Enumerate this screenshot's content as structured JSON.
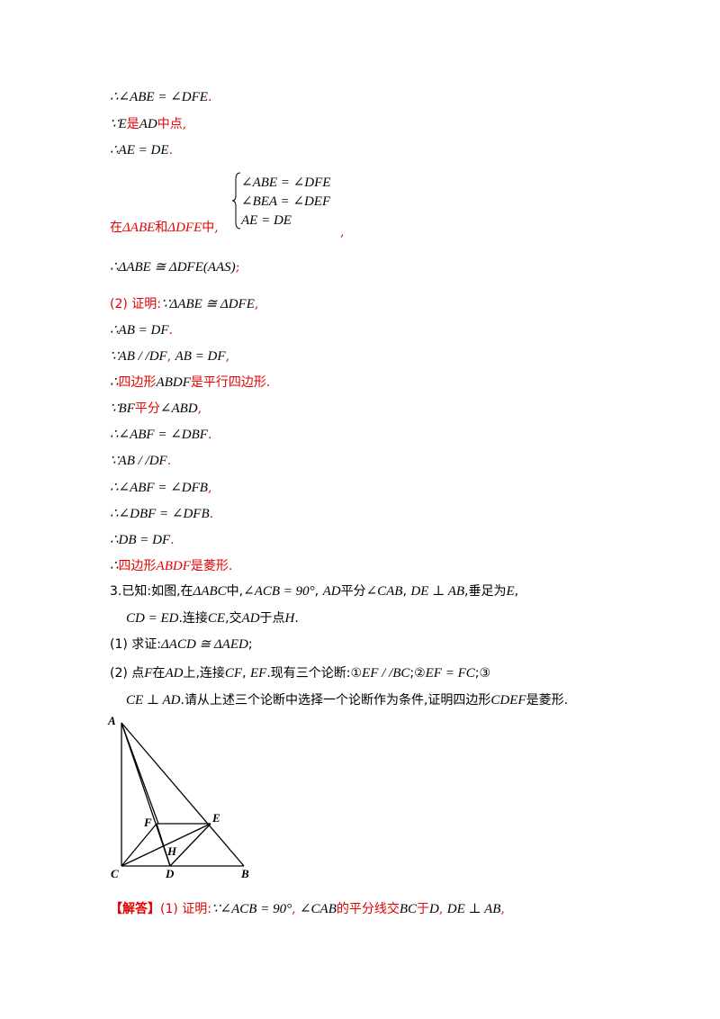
{
  "lines": [
    {
      "text": "∴∠ABE = ∠DFE",
      "tail": "."
    },
    {
      "text": "∵E",
      "red": "是",
      "mid": "AD",
      "red2": "中点",
      "tail": ","
    },
    {
      "text": "∴AE = DE",
      "tail": "."
    },
    {
      "brace": [
        "∠ABE = ∠DFE",
        "∠BEA = ∠DEF",
        "AE = DE"
      ]
    },
    {
      "red": "在",
      "m1": "ΔABE",
      "red2": "和",
      "m2": "ΔDFE",
      "red3": "中",
      "tail": ","
    },
    {
      "tail2": ","
    },
    {
      "text": "∴ΔABE ≅ ΔDFE(AAS)",
      "tail": ";"
    },
    {
      "red": "(2) 证明:",
      "text": "∵ΔABE ≅ ΔDFE",
      "tail": ","
    },
    {
      "text": "∴AB = DF",
      "tail": "."
    },
    {
      "text": "∵AB / /DF",
      "mid": "AB = DF",
      "tail": ","
    },
    {
      "text": "∴",
      "red": "四边形",
      "mid": "ABDF",
      "red2": "是平行四边形."
    },
    {
      "text": "∵BF",
      "red": "平分",
      "mid": "∠ABD",
      "tail": ","
    },
    {
      "text": "∴∠ABF = ∠DBF",
      "tail": "."
    },
    {
      "text": "∵AB / /DF",
      "tail": "."
    },
    {
      "text": "∴∠ABF = ∠DFB",
      "tail": ","
    },
    {
      "text": "∴∠DBF = ∠DFB",
      "tail": "."
    },
    {
      "text": "∴DB = DF",
      "tail": "."
    },
    {
      "text": "∴",
      "red": "四边形",
      "mid": "ABDF",
      "red2": "是菱形."
    }
  ],
  "problem3": {
    "p1a": "3.已知:如图,在",
    "p1b": "ΔABC",
    "p1c": "中,",
    "p1d": "∠ACB = 90°",
    "p1e": ",",
    "p1f": "AD",
    "p1g": "平分",
    "p1h": "∠CAB",
    "p1i": ",",
    "p1j": "DE ⊥ AB",
    "p1k": ",垂足为",
    "p1l": "E",
    "p1m": ",",
    "p2a": "CD = ED",
    "p2b": ".连接",
    "p2c": "CE",
    "p2d": ",交",
    "p2e": "AD",
    "p2f": "于点",
    "p2g": "H",
    "p2h": ".",
    "q1a": "(1) 求证:",
    "q1b": "ΔACD ≅ ΔAED",
    "q1c": ";",
    "q2a": "(2) 点",
    "q2b": "F",
    "q2c": "在",
    "q2d": "AD",
    "q2e": "上,连接",
    "q2f": "CF",
    "q2g": ",",
    "q2h": "EF",
    "q2i": ".现有三个论断:①",
    "q2j": "EF / /BC",
    "q2k": ";②",
    "q2l": "EF = FC",
    "q2m": ";③",
    "q3a": "CE ⊥ AD",
    "q3b": ".请从上述三个论断中选择一个论断作为条件,证明四边形",
    "q3c": "CDEF",
    "q3d": "是菱形."
  },
  "figure_labels": {
    "A": "A",
    "F": "F",
    "E": "E",
    "H": "H",
    "C": "C",
    "D": "D",
    "B": "B"
  },
  "answer": {
    "tag": "【解答】",
    "a1": "(1) 证明:",
    "a2": "∵∠ACB = 90°",
    "a3": ",",
    "a4": "∠CAB",
    "a5": "的平分线交",
    "a6": "BC",
    "a7": "于",
    "a8": "D",
    "a9": ",",
    "a10": "DE ⊥ AB",
    "a11": ","
  }
}
